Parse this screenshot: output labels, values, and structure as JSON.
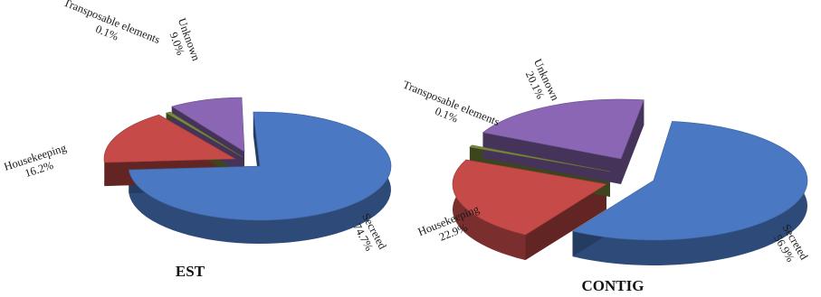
{
  "chart_data": [
    {
      "type": "pie",
      "style": "3d-exploded",
      "title": "EST",
      "slices": [
        {
          "name": "Secreted",
          "value": 74.7,
          "value_label": "74.7%",
          "color": "#4a78c2"
        },
        {
          "name": "Housekeeping",
          "value": 16.2,
          "value_label": "16.2%",
          "color": "#c54a48"
        },
        {
          "name": "Transposable elements",
          "value": 0.1,
          "value_label": "0.1%",
          "color": "#7a8a3e"
        },
        {
          "name": "Unknown",
          "value": 9.0,
          "value_label": "9.0%",
          "color": "#8a66b4"
        }
      ]
    },
    {
      "type": "pie",
      "style": "3d-exploded",
      "title": "CONTIG",
      "slices": [
        {
          "name": "Secreted",
          "value": 56.9,
          "value_label": "56.9%",
          "color": "#4a78c2"
        },
        {
          "name": "Housekeeping",
          "value": 22.9,
          "value_label": "22.9%",
          "color": "#c54a48"
        },
        {
          "name": "Transposable elements",
          "value": 0.1,
          "value_label": "0.1%",
          "color": "#7a8a3e"
        },
        {
          "name": "Unknown",
          "value": 20.1,
          "value_label": "20.1%",
          "color": "#8a66b4"
        }
      ]
    }
  ]
}
